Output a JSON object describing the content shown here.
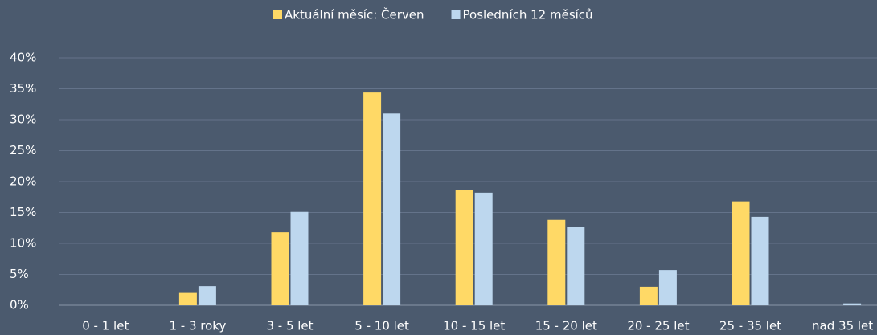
{
  "chart_data": {
    "type": "bar",
    "categories": [
      "0 - 1 let",
      "1 - 3 roky",
      "3 - 5 let",
      "5 - 10 let",
      "10 - 15 let",
      "15 - 20 let",
      "20 - 25 let",
      "25 - 35 let",
      "nad 35 let"
    ],
    "series": [
      {
        "name": "Aktuální měsíc: Červen",
        "color": "#ffd966",
        "values": [
          0,
          2,
          11.8,
          34.4,
          18.7,
          13.8,
          3.0,
          16.8,
          0
        ]
      },
      {
        "name": "Posledních 12 měsíců",
        "color": "#bdd7ee",
        "values": [
          0,
          3.1,
          15.1,
          31.0,
          18.2,
          12.7,
          5.7,
          14.3,
          0.3
        ]
      }
    ],
    "ylim": [
      0,
      40
    ],
    "yticks": [
      {
        "value": 0,
        "label": "0%"
      },
      {
        "value": 5,
        "label": "5%"
      },
      {
        "value": 10,
        "label": "10%"
      },
      {
        "value": 15,
        "label": "15%"
      },
      {
        "value": 20,
        "label": "20%"
      },
      {
        "value": 25,
        "label": "25%"
      },
      {
        "value": 30,
        "label": "30%"
      },
      {
        "value": 35,
        "label": "35%"
      },
      {
        "value": 40,
        "label": "40%"
      }
    ],
    "grid": true,
    "legend": "top"
  }
}
